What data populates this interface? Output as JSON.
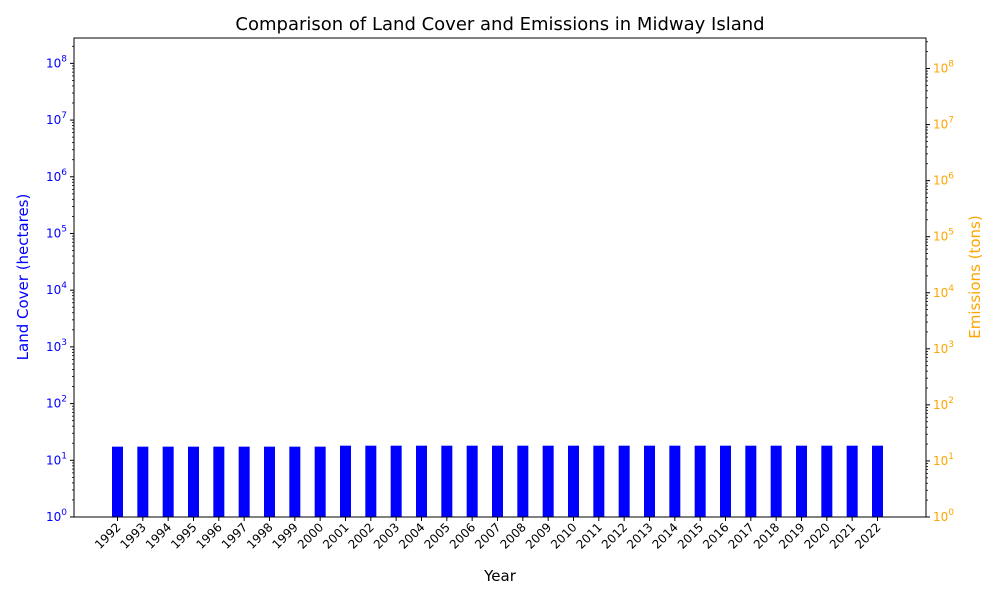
{
  "chart_data": {
    "type": "bar",
    "title": "Comparison of Land Cover and Emissions in Midway Island",
    "xlabel": "Year",
    "ylabel_left": "Land Cover (hectares)",
    "ylabel_right": "Emissions (tons)",
    "y_scale": "log",
    "ylim_left": [
      1,
      280000000
    ],
    "ylim_right": [
      1,
      350000000
    ],
    "categories": [
      "1992",
      "1993",
      "1994",
      "1995",
      "1996",
      "1997",
      "1998",
      "1999",
      "2000",
      "2001",
      "2002",
      "2003",
      "2004",
      "2005",
      "2006",
      "2007",
      "2008",
      "2009",
      "2010",
      "2011",
      "2012",
      "2013",
      "2014",
      "2015",
      "2016",
      "2017",
      "2018",
      "2019",
      "2020",
      "2021",
      "2022"
    ],
    "series": [
      {
        "axis": "left",
        "values": [
          17.4,
          17.4,
          17.4,
          17.4,
          17.4,
          17.4,
          17.4,
          17.4,
          17.4,
          18.1,
          18.1,
          18.1,
          18.1,
          18.1,
          18.1,
          18.1,
          18.1,
          18.1,
          18.1,
          18.1,
          18.1,
          18.1,
          18.1,
          18.1,
          18.1,
          18.1,
          18.1,
          18.1,
          18.1,
          18.1,
          18.1
        ]
      }
    ],
    "left_axis_color": "#0000ff",
    "right_axis_color": "#ffa500",
    "bar_color": "#0000ff",
    "left_ticks": [
      "10^0",
      "10^1",
      "10^2",
      "10^3",
      "10^4",
      "10^5",
      "10^6",
      "10^7",
      "10^8"
    ],
    "right_ticks": [
      "10^0",
      "10^1",
      "10^2",
      "10^3",
      "10^4",
      "10^5",
      "10^6",
      "10^7",
      "10^8"
    ],
    "grid": false,
    "legend": "none"
  }
}
